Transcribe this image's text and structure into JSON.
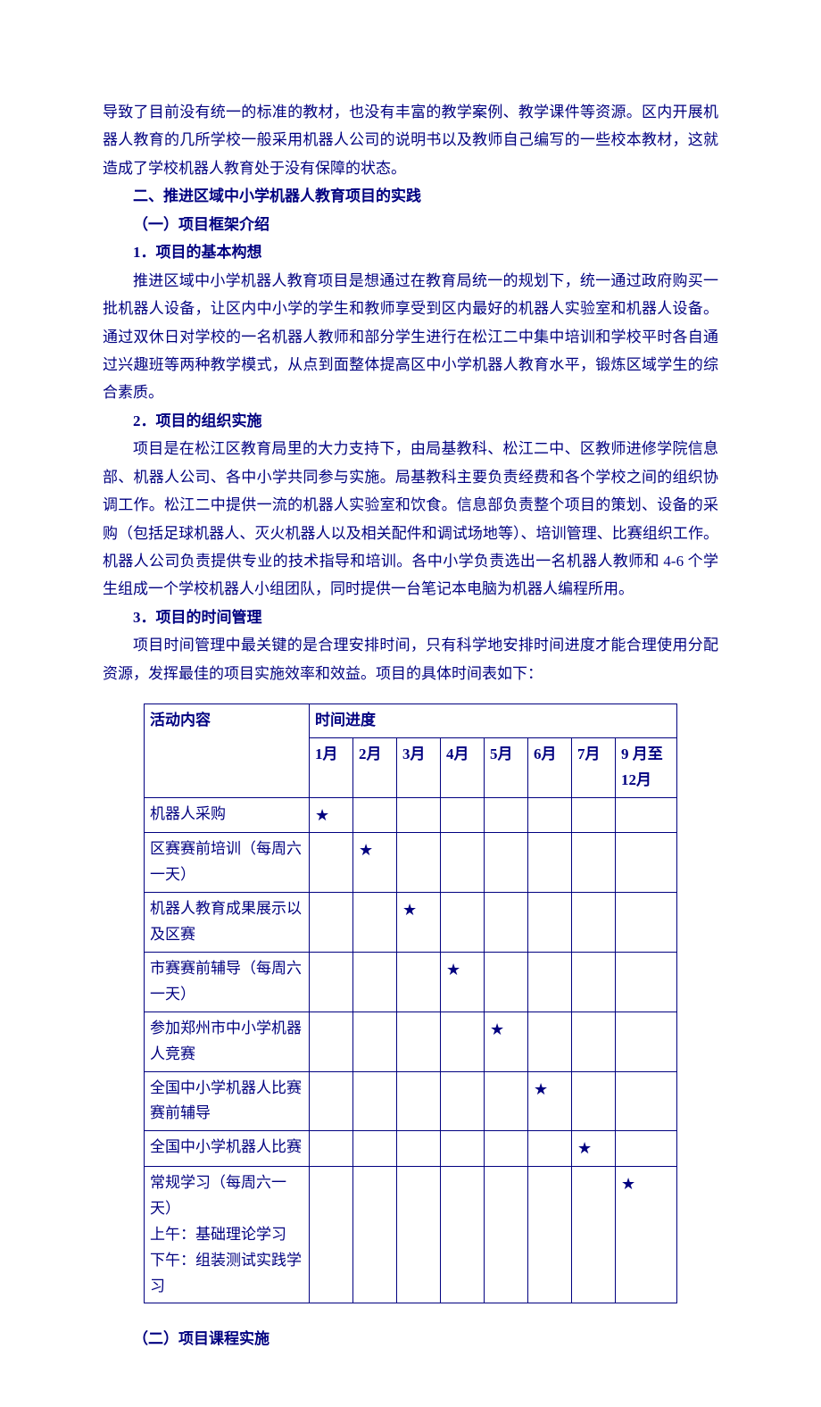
{
  "colors": {
    "text": "#000080",
    "border": "#000080",
    "background": "#ffffff"
  },
  "paragraphs": {
    "p0": "导致了目前没有统一的标准的教材，也没有丰富的教学案例、教学课件等资源。区内开展机器人教育的几所学校一般采用机器人公司的说明书以及教师自己编写的一些校本教材，这就造成了学校机器人教育处于没有保障的状态。",
    "h1": "二、推进区域中小学机器人教育项目的实践",
    "h2": "（一）项目框架介绍",
    "h3": "1．项目的基本构想",
    "p1": "推进区域中小学机器人教育项目是想通过在教育局统一的规划下，统一通过政府购买一批机器人设备，让区内中小学的学生和教师享受到区内最好的机器人实验室和机器人设备。通过双休日对学校的一名机器人教师和部分学生进行在松江二中集中培训和学校平时各自通过兴趣班等两种教学模式，从点到面整体提高区中小学机器人教育水平，锻炼区域学生的综合素质。",
    "h4": "2．项目的组织实施",
    "p2": "项目是在松江区教育局里的大力支持下，由局基教科、松江二中、区教师进修学院信息部、机器人公司、各中小学共同参与实施。局基教科主要负责经费和各个学校之间的组织协调工作。松江二中提供一流的机器人实验室和饮食。信息部负责整个项目的策划、设备的采购（包括足球机器人、灭火机器人以及相关配件和调试场地等）、培训管理、比赛组织工作。机器人公司负责提供专业的技术指导和培训。各中小学负责选出一名机器人教师和 4-6 个学生组成一个学校机器人小组团队，同时提供一台笔记本电脑为机器人编程所用。",
    "h5": "3．项目的时间管理",
    "p3": "项目时间管理中最关键的是合理安排时间，只有科学地安排时间进度才能合理使用分配资源，发挥最佳的项目实施效率和效益。项目的具体时间表如下：",
    "h6": "（二）项目课程实施"
  },
  "table": {
    "activity_header": "活动内容",
    "time_header": "时间进度",
    "months": [
      "1月",
      "2月",
      "3月",
      "4月",
      "5月",
      "6月",
      "7月",
      "9 月至 12月"
    ],
    "star": "★",
    "rows": [
      {
        "label": "机器人采购",
        "mark": 0
      },
      {
        "label": "区赛赛前培训（每周六一天）",
        "mark": 1
      },
      {
        "label": "机器人教育成果展示以及区赛",
        "mark": 2
      },
      {
        "label": "市赛赛前辅导（每周六一天）",
        "mark": 3
      },
      {
        "label": "参加郑州市中小学机器人竞赛",
        "mark": 4
      },
      {
        "label": "全国中小学机器人比赛赛前辅导",
        "mark": 5
      },
      {
        "label": "全国中小学机器人比赛",
        "mark": 6
      },
      {
        "label": "常规学习（每周六一天）\n上午：基础理论学习\n下午：组装测试实践学习",
        "mark": 7
      }
    ]
  }
}
